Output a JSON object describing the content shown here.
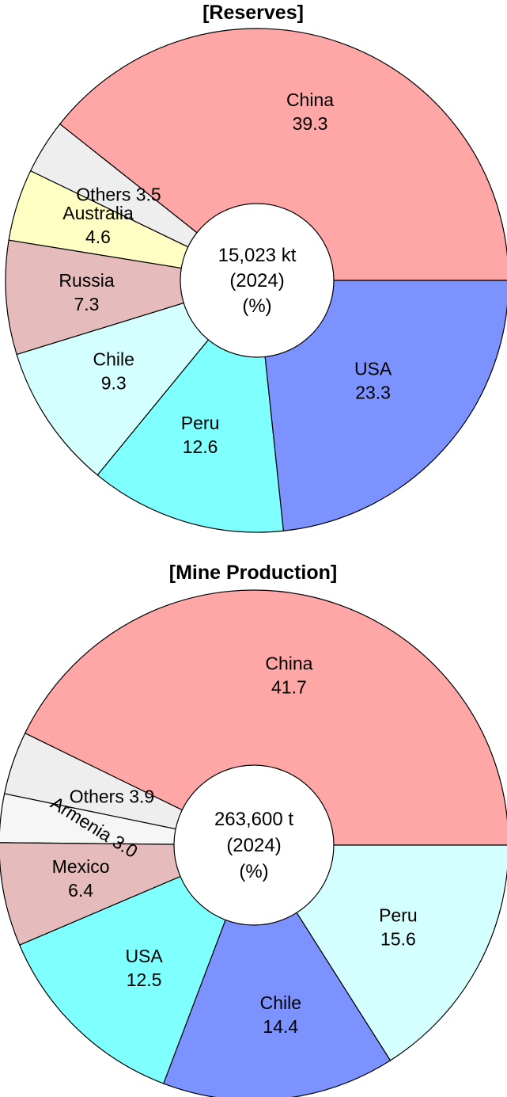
{
  "chart_data": [
    {
      "type": "pie",
      "title": "[Reserves]",
      "center_label": [
        "15,023 kt",
        "(2024)",
        "(%)"
      ],
      "slices": [
        {
          "label": "China",
          "value": 39.3,
          "color": "#ffa6a6",
          "text": [
            "China",
            "39.3"
          ]
        },
        {
          "label": "Others",
          "value": 3.5,
          "color": "#eeeeee",
          "text": [
            "Others 3.5"
          ]
        },
        {
          "label": "Australia",
          "value": 4.6,
          "color": "#ffffc4",
          "text": [
            "Australia",
            "4.6"
          ]
        },
        {
          "label": "Russia",
          "value": 7.3,
          "color": "#e6bbbb",
          "text": [
            "Russia",
            "7.3"
          ]
        },
        {
          "label": "Chile",
          "value": 9.3,
          "color": "#d4ffff",
          "text": [
            "Chile",
            "9.3"
          ]
        },
        {
          "label": "Peru",
          "value": 12.6,
          "color": "#80ffff",
          "text": [
            "Peru",
            "12.6"
          ]
        },
        {
          "label": "USA",
          "value": 23.3,
          "color": "#7c92ff",
          "text": [
            "USA",
            "23.3"
          ]
        }
      ]
    },
    {
      "type": "pie",
      "title": "[Mine Production]",
      "center_label": [
        "263,600 t",
        "(2024)",
        "(%)"
      ],
      "slices": [
        {
          "label": "China",
          "value": 41.7,
          "color": "#ffa6a6",
          "text": [
            "China",
            "41.7"
          ]
        },
        {
          "label": "Others",
          "value": 3.9,
          "color": "#eeeeee",
          "text": [
            "Others 3.9"
          ]
        },
        {
          "label": "Armenia",
          "value": 3.0,
          "color": "#f6f6f6",
          "text": [
            "Armenia 3.0"
          ]
        },
        {
          "label": "Mexico",
          "value": 6.4,
          "color": "#e6bbbb",
          "text": [
            "Mexico",
            "6.4"
          ]
        },
        {
          "label": "USA",
          "value": 12.5,
          "color": "#80ffff",
          "text": [
            "USA",
            "12.5"
          ]
        },
        {
          "label": "Chile",
          "value": 14.4,
          "color": "#7c92ff",
          "text": [
            "Chile",
            "14.4"
          ]
        },
        {
          "label": "Peru",
          "value": 15.6,
          "color": "#d4ffff",
          "text": [
            "Peru",
            "15.6"
          ]
        }
      ]
    }
  ]
}
